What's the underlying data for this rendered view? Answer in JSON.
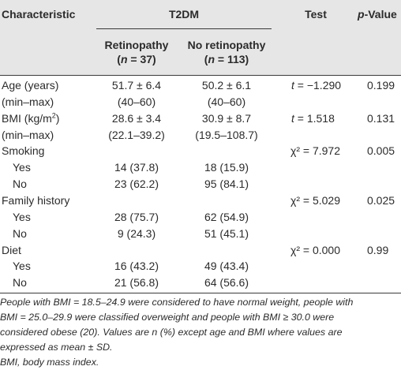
{
  "header": {
    "characteristic": "Characteristic",
    "group": "T2DM",
    "test": "Test",
    "pvalue_p": "p",
    "pvalue_rest": "-Value",
    "col1_name": "Retinopathy",
    "col1_n": "(n = 37)",
    "col2_name": "No retinopathy",
    "col2_n": "(n = 113)"
  },
  "rows": [
    {
      "label": "Age (years)",
      "c1": "51.7 ± 6.4",
      "c2": "50.2 ± 6.1",
      "test": "t = −1.290",
      "p": "0.199"
    },
    {
      "label": "(min–max)",
      "c1": "(40–60)",
      "c2": "(40–60)",
      "test": "",
      "p": ""
    },
    {
      "label": "BMI (kg/m",
      "label_sup": "2",
      "label_end": ")",
      "c1": "28.6 ± 3.4",
      "c2": "30.9 ± 8.7",
      "test": "t = 1.518",
      "p": "0.131"
    },
    {
      "label": "(min–max)",
      "c1": "(22.1–39.2)",
      "c2": "(19.5–108.7)",
      "test": "",
      "p": ""
    },
    {
      "label": "Smoking",
      "c1": "",
      "c2": "",
      "test": "χ² = 7.972",
      "p": "0.005"
    },
    {
      "label": "Yes",
      "c1": "14 (37.8)",
      "c2": "18 (15.9)",
      "test": "",
      "p": ""
    },
    {
      "label": "No",
      "c1": "23 (62.2)",
      "c2": "95 (84.1)",
      "test": "",
      "p": ""
    },
    {
      "label": "Family history",
      "c1": "",
      "c2": "",
      "test": "χ² = 5.029",
      "p": "0.025"
    },
    {
      "label": "Yes",
      "c1": "28 (75.7)",
      "c2": "62 (54.9)",
      "test": "",
      "p": ""
    },
    {
      "label": "No",
      "c1": "9 (24.3)",
      "c2": "51 (45.1)",
      "test": "",
      "p": ""
    },
    {
      "label": "Diet",
      "c1": "",
      "c2": "",
      "test": "χ² = 0.000",
      "p": "0.99"
    },
    {
      "label": "Yes",
      "c1": "16 (43.2)",
      "c2": "49 (43.4)",
      "test": "",
      "p": ""
    },
    {
      "label": "No",
      "c1": "21 (56.8)",
      "c2": "64 (56.6)",
      "test": "",
      "p": ""
    }
  ],
  "footnotes": {
    "line1": "People with BMI = 18.5–24.9 were considered to have normal weight, people with",
    "line2": "BMI = 25.0–29.9 were classified overweight and people with BMI ≥ 30.0 were",
    "line3_a": "considered obese (",
    "line3_cite": "20",
    "line3_b": "). Values are n (%) except age and BMI where values are",
    "line4": "expressed as mean ± SD.",
    "line5": "BMI, body mass index."
  }
}
